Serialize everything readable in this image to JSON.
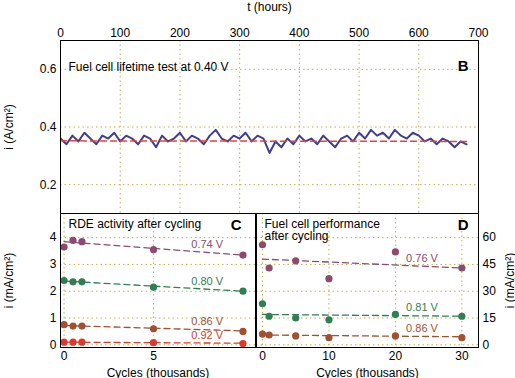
{
  "chart_data": [
    {
      "type": "line",
      "title": "Fuel cell lifetime test at 0.40 V",
      "annotations": [
        "B"
      ],
      "x_label": "t (hours)",
      "y_label": "i (A/cm²)",
      "xlim": [
        0,
        700
      ],
      "ylim": [
        0.1,
        0.7
      ],
      "xticks": [
        0,
        100,
        200,
        300,
        400,
        500,
        600,
        700
      ],
      "yticks": [
        0.2,
        0.4,
        0.6
      ],
      "grid": true,
      "series": [
        {
          "type": "line",
          "color": "#3f3f8c",
          "x": [
            0,
            10,
            20,
            30,
            40,
            50,
            60,
            70,
            80,
            90,
            100,
            110,
            120,
            130,
            140,
            150,
            160,
            170,
            180,
            190,
            200,
            210,
            220,
            230,
            240,
            250,
            260,
            270,
            280,
            290,
            300,
            310,
            320,
            330,
            340,
            350,
            360,
            370,
            380,
            390,
            400,
            410,
            420,
            430,
            440,
            450,
            460,
            470,
            480,
            490,
            500,
            510,
            520,
            530,
            540,
            550,
            560,
            570,
            580,
            590,
            600,
            610,
            620,
            630,
            640,
            650,
            660,
            670,
            680
          ],
          "values": [
            0.36,
            0.34,
            0.37,
            0.35,
            0.38,
            0.36,
            0.34,
            0.37,
            0.36,
            0.38,
            0.35,
            0.37,
            0.36,
            0.34,
            0.37,
            0.36,
            0.33,
            0.37,
            0.35,
            0.36,
            0.38,
            0.35,
            0.37,
            0.36,
            0.34,
            0.37,
            0.39,
            0.36,
            0.35,
            0.37,
            0.36,
            0.38,
            0.35,
            0.37,
            0.36,
            0.31,
            0.35,
            0.33,
            0.36,
            0.34,
            0.37,
            0.35,
            0.36,
            0.34,
            0.37,
            0.35,
            0.33,
            0.36,
            0.37,
            0.35,
            0.38,
            0.36,
            0.39,
            0.37,
            0.38,
            0.36,
            0.39,
            0.37,
            0.36,
            0.38,
            0.37,
            0.35,
            0.36,
            0.34,
            0.36,
            0.35,
            0.33,
            0.35,
            0.34
          ]
        },
        {
          "type": "line",
          "color": "#e8423a",
          "line_style": "dashed",
          "x": [
            0,
            685
          ],
          "values": [
            0.352,
            0.35
          ]
        }
      ]
    },
    {
      "type": "scatter",
      "title": "RDE activity after cycling",
      "annotations": [
        "C"
      ],
      "x_label": "Cycles (thousands)",
      "y_label": "i (mA/cm²)",
      "xlim": [
        -0.2,
        10.7
      ],
      "ylim": [
        -0.1,
        4.9
      ],
      "xticks": [
        0,
        5
      ],
      "yticks": [
        0,
        1,
        2,
        3,
        4
      ],
      "grid": true,
      "series": [
        {
          "name": "0.74 V",
          "color": "#8e4a6e",
          "marker": "circle",
          "line_style": "dashed",
          "x": [
            0,
            0.5,
            1,
            5,
            10
          ],
          "values": [
            3.65,
            3.9,
            3.85,
            3.55,
            3.35
          ],
          "trend_x": [
            0,
            10
          ],
          "trend": [
            3.85,
            3.35
          ]
        },
        {
          "name": "0.80 V",
          "color": "#2f7f52",
          "marker": "circle",
          "line_style": "dashed",
          "x": [
            0,
            0.5,
            1,
            5,
            10
          ],
          "values": [
            2.4,
            2.35,
            2.35,
            2.15,
            2.0
          ],
          "trend_x": [
            0,
            10
          ],
          "trend": [
            2.38,
            2.0
          ]
        },
        {
          "name": "0.86 V",
          "color": "#a3502f",
          "marker": "circle",
          "line_style": "dashed",
          "x": [
            0,
            0.5,
            1,
            5,
            10
          ],
          "values": [
            0.75,
            0.7,
            0.7,
            0.6,
            0.5
          ],
          "trend_x": [
            0,
            10
          ],
          "trend": [
            0.72,
            0.52
          ]
        },
        {
          "name": "0.92 V",
          "color": "#e0392b",
          "marker": "circle",
          "line_style": "dashed",
          "x": [
            0,
            0.5,
            1,
            5,
            10
          ],
          "values": [
            0.1,
            0.1,
            0.1,
            0.08,
            0.05
          ],
          "trend_x": [
            0,
            10
          ],
          "trend": [
            0.1,
            0.06
          ]
        }
      ]
    },
    {
      "type": "scatter",
      "title": "Fuel cell performance\nafter cycling",
      "annotations": [
        "D"
      ],
      "x_label": "Cycles (thousands)",
      "y_label": "i (mA/cm²)",
      "xlim": [
        -0.9,
        32.5
      ],
      "ylim": [
        -1.5,
        73.5
      ],
      "xticks": [
        0,
        10,
        20,
        30
      ],
      "yticks": [
        0,
        15,
        30,
        45,
        60
      ],
      "grid": true,
      "series": [
        {
          "name": "0.76 V",
          "color": "#8e4a6e",
          "marker": "circle",
          "line_style": "dashed",
          "x": [
            0,
            1,
            5,
            10,
            20,
            30
          ],
          "values": [
            56,
            43,
            47,
            37,
            52,
            43
          ],
          "trend_x": [
            0,
            30
          ],
          "trend": [
            48,
            43
          ]
        },
        {
          "name": "0.81 V",
          "color": "#2f7f52",
          "marker": "circle",
          "line_style": "dashed",
          "x": [
            0,
            1,
            5,
            10,
            20,
            30
          ],
          "values": [
            23,
            16,
            15,
            14,
            17,
            16
          ],
          "trend_x": [
            0,
            30
          ],
          "trend": [
            17,
            16
          ]
        },
        {
          "name": "0.86 V",
          "color": "#a3502f",
          "marker": "circle",
          "line_style": "dashed",
          "x": [
            0,
            1,
            5,
            10,
            20,
            30
          ],
          "values": [
            6,
            5.5,
            5,
            4,
            5,
            4
          ],
          "trend_x": [
            0,
            30
          ],
          "trend": [
            5.5,
            4.5
          ]
        }
      ]
    }
  ]
}
